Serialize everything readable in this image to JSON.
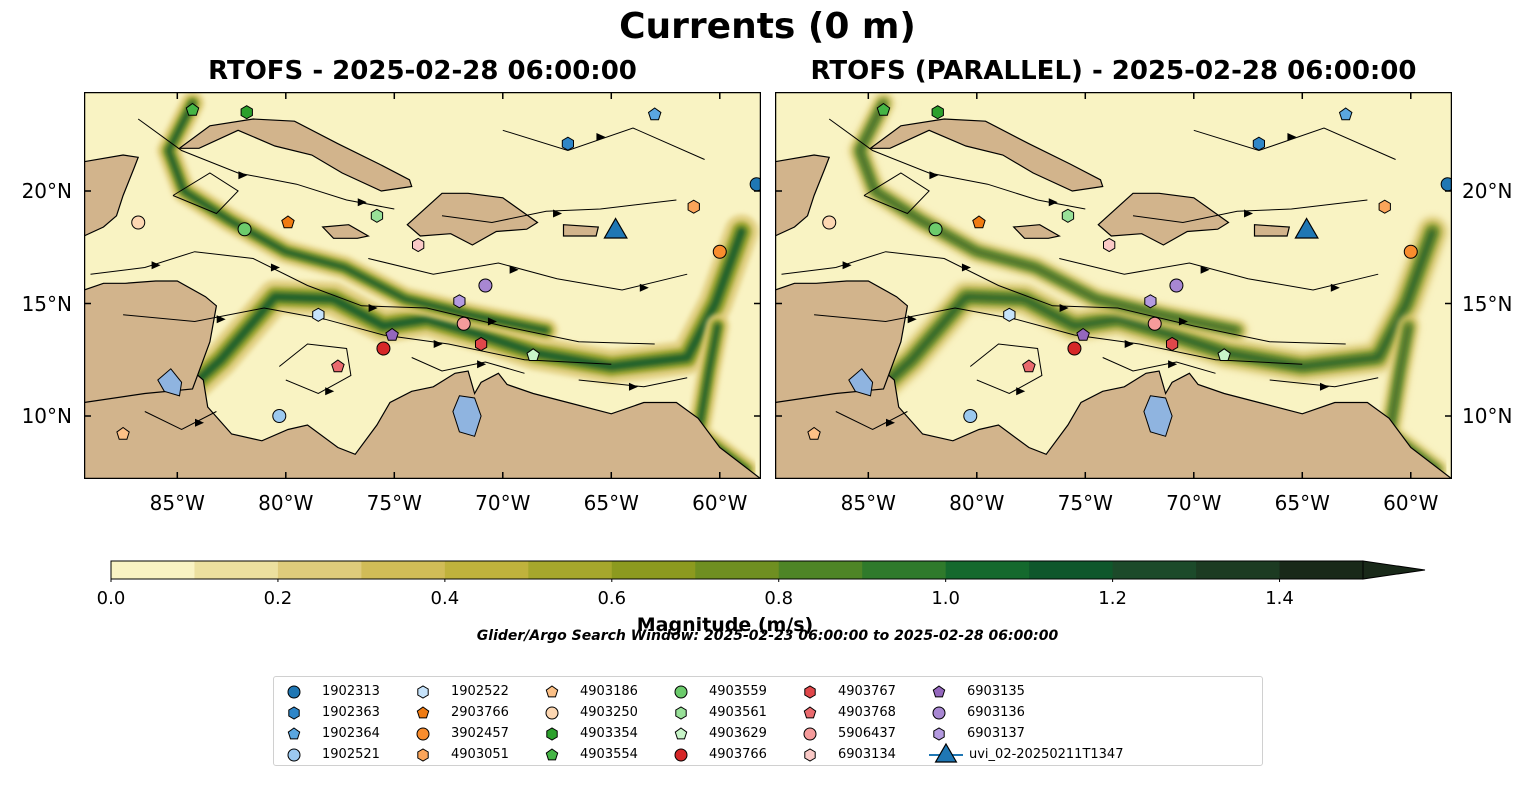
{
  "figure": {
    "title": "Currents (0 m)",
    "left_title": "RTOFS - 2025-02-28 06:00:00",
    "right_title": "RTOFS (PARALLEL) - 2025-02-28 06:00:00",
    "search_window": "Glider/Argo Search Window: 2025-02-23 06:00:00 to 2025-02-28 06:00:00"
  },
  "colors": {
    "land": "#d2b48c",
    "ocean_low": "#f8f2c2",
    "current_high": "#15311a",
    "lakes": "#8fb4e0"
  },
  "chart_data": {
    "type": "map",
    "map_extent": {
      "lon": [
        -89.3,
        -58.1
      ],
      "lat": [
        7.2,
        24.4
      ]
    },
    "xticks": [
      {
        "value": -85,
        "label": "85°W"
      },
      {
        "value": -80,
        "label": "80°W"
      },
      {
        "value": -75,
        "label": "75°W"
      },
      {
        "value": -70,
        "label": "70°W"
      },
      {
        "value": -65,
        "label": "65°W"
      },
      {
        "value": -60,
        "label": "60°W"
      }
    ],
    "yticks": [
      {
        "value": 10,
        "label": "10°N"
      },
      {
        "value": 15,
        "label": "15°N"
      },
      {
        "value": 20,
        "label": "20°N"
      }
    ],
    "colorbar": {
      "label": "Magnitude (m/s)",
      "range": [
        0.0,
        1.5
      ],
      "extend": "max",
      "ticks": [
        {
          "value": 0.0,
          "label": "0.0"
        },
        {
          "value": 0.2,
          "label": "0.2"
        },
        {
          "value": 0.4,
          "label": "0.4"
        },
        {
          "value": 0.6,
          "label": "0.6"
        },
        {
          "value": 0.8,
          "label": "0.8"
        },
        {
          "value": 1.0,
          "label": "1.0"
        },
        {
          "value": 1.2,
          "label": "1.2"
        },
        {
          "value": 1.4,
          "label": "1.4"
        }
      ],
      "colors": [
        "#f9f3c3",
        "#ece09f",
        "#dfcb7b",
        "#d1bc57",
        "#c0b23c",
        "#a6a72c",
        "#8c9a1f",
        "#6f8f21",
        "#4e8526",
        "#2f7a2b",
        "#15692d",
        "#0f572b",
        "#1c4a2a",
        "#1c3b22",
        "#192919"
      ]
    },
    "maps": [
      {
        "name": "RTOFS",
        "date": "2025-02-28 06:00:00"
      },
      {
        "name": "RTOFS (PARALLEL)",
        "date": "2025-02-28 06:00:00"
      }
    ],
    "platforms": [
      {
        "id": "1902313",
        "marker": "circle",
        "color": "#1f77b4",
        "lon": -58.3,
        "lat": 20.3
      },
      {
        "id": "1902363",
        "marker": "hexagon",
        "color": "#2f86c8",
        "lon": -67.0,
        "lat": 22.1
      },
      {
        "id": "1902364",
        "marker": "pentagon",
        "color": "#5aa6e0",
        "lon": -63.0,
        "lat": 23.4
      },
      {
        "id": "1902521",
        "marker": "circle",
        "color": "#9cc9ef",
        "lon": -80.3,
        "lat": 10.0
      },
      {
        "id": "1902522",
        "marker": "hexagon",
        "color": "#c6e3fb",
        "lon": -78.5,
        "lat": 14.5
      },
      {
        "id": "2903766",
        "marker": "pentagon",
        "color": "#f07b12",
        "lon": -79.9,
        "lat": 18.6
      },
      {
        "id": "3902457",
        "marker": "circle",
        "color": "#f98d2e",
        "lon": -60.0,
        "lat": 17.3
      },
      {
        "id": "4903051",
        "marker": "hexagon",
        "color": "#fba55a",
        "lon": -61.2,
        "lat": 19.3
      },
      {
        "id": "4903186",
        "marker": "pentagon",
        "color": "#fcc086",
        "lon": -87.5,
        "lat": 9.2
      },
      {
        "id": "4903250",
        "marker": "circle",
        "color": "#fdd7b2",
        "lon": -86.8,
        "lat": 18.6
      },
      {
        "id": "4903354",
        "marker": "hexagon",
        "color": "#2ca02c",
        "lon": -81.8,
        "lat": 23.5
      },
      {
        "id": "4903554",
        "marker": "pentagon",
        "color": "#45b545",
        "lon": -84.3,
        "lat": 23.6
      },
      {
        "id": "4903559",
        "marker": "circle",
        "color": "#6ccb6c",
        "lon": -81.9,
        "lat": 18.3
      },
      {
        "id": "4903561",
        "marker": "hexagon",
        "color": "#98e098",
        "lon": -75.8,
        "lat": 18.9
      },
      {
        "id": "4903629",
        "marker": "pentagon",
        "color": "#c8f5c8",
        "lon": -68.6,
        "lat": 12.7
      },
      {
        "id": "4903766",
        "marker": "circle",
        "color": "#d62728",
        "lon": -75.5,
        "lat": 13.0
      },
      {
        "id": "4903767",
        "marker": "hexagon",
        "color": "#e0474a",
        "lon": -71.0,
        "lat": 13.2
      },
      {
        "id": "4903768",
        "marker": "pentagon",
        "color": "#ea6a6e",
        "lon": -77.6,
        "lat": 12.2
      },
      {
        "id": "5906437",
        "marker": "circle",
        "color": "#f59b9b",
        "lon": -71.8,
        "lat": 14.1
      },
      {
        "id": "6903134",
        "marker": "hexagon",
        "color": "#fac9c6",
        "lon": -73.9,
        "lat": 17.6
      },
      {
        "id": "6903135",
        "marker": "pentagon",
        "color": "#9467bd",
        "lon": -75.1,
        "lat": 13.6
      },
      {
        "id": "6903136",
        "marker": "circle",
        "color": "#a887d2",
        "lon": -70.8,
        "lat": 15.8
      },
      {
        "id": "6903137",
        "marker": "hexagon",
        "color": "#b49ae0",
        "lon": -72.0,
        "lat": 15.1
      },
      {
        "id": "uvi_02-20250211T1347",
        "marker": "triangle",
        "color": "#1f77b4",
        "lon": -64.8,
        "lat": 18.2
      }
    ]
  }
}
